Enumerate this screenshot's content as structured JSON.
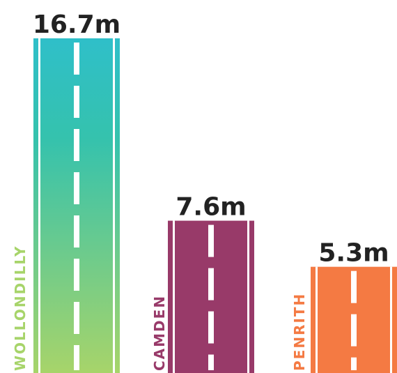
{
  "chart_data": {
    "type": "bar",
    "categories": [
      "WOLLONDILLY",
      "CAMDEN",
      "PENRITH"
    ],
    "values": [
      16.7,
      7.6,
      5.3
    ],
    "value_labels": [
      "16.7m",
      "7.6m",
      "5.3m"
    ],
    "title": "",
    "xlabel": "",
    "ylabel": "",
    "ylim": [
      0,
      16.7
    ],
    "grid": false,
    "legend": "none",
    "bar_style": "road-with-dashed-centre-line",
    "colors": {
      "WOLLONDILLY": {
        "top": "#2fbfc9",
        "mid": "#35c2ad",
        "bottom": "#a7d46a",
        "label": "#a7d46a"
      },
      "CAMDEN": {
        "fill": "#983a69",
        "label": "#983a69"
      },
      "PENRITH": {
        "fill": "#f47a43",
        "label": "#f47a43"
      }
    }
  }
}
